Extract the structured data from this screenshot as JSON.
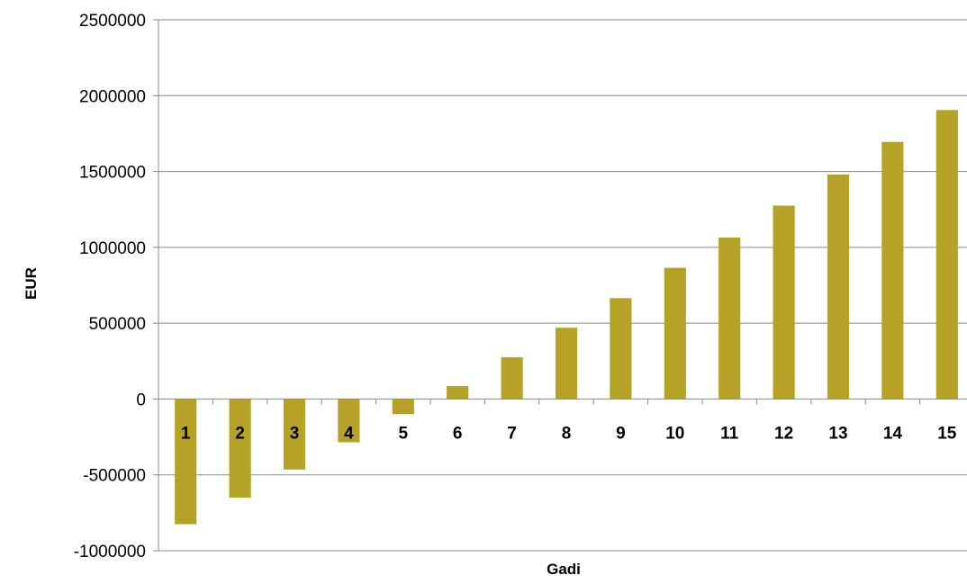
{
  "chart_data": {
    "type": "bar",
    "xlabel": "Gadi",
    "ylabel": "EUR",
    "ylim": [
      -1000000,
      2500000
    ],
    "yticks": [
      2500000,
      2000000,
      1500000,
      1000000,
      500000,
      0,
      -500000,
      -1000000
    ],
    "ytick_labels": [
      "2500000",
      "2000000",
      "1500000",
      "1000000",
      "500000",
      "0",
      "-500000",
      "-1000000"
    ],
    "grid": true,
    "legend": "none",
    "bar_color": "#b5a226",
    "categories": [
      "1",
      "2",
      "3",
      "4",
      "5",
      "6",
      "7",
      "8",
      "9",
      "10",
      "11",
      "12",
      "13",
      "14",
      "15"
    ],
    "values": [
      -825000,
      -650000,
      -465000,
      -285000,
      -100000,
      85000,
      275000,
      470000,
      665000,
      865000,
      1065000,
      1275000,
      1480000,
      1695000,
      1905000
    ]
  }
}
